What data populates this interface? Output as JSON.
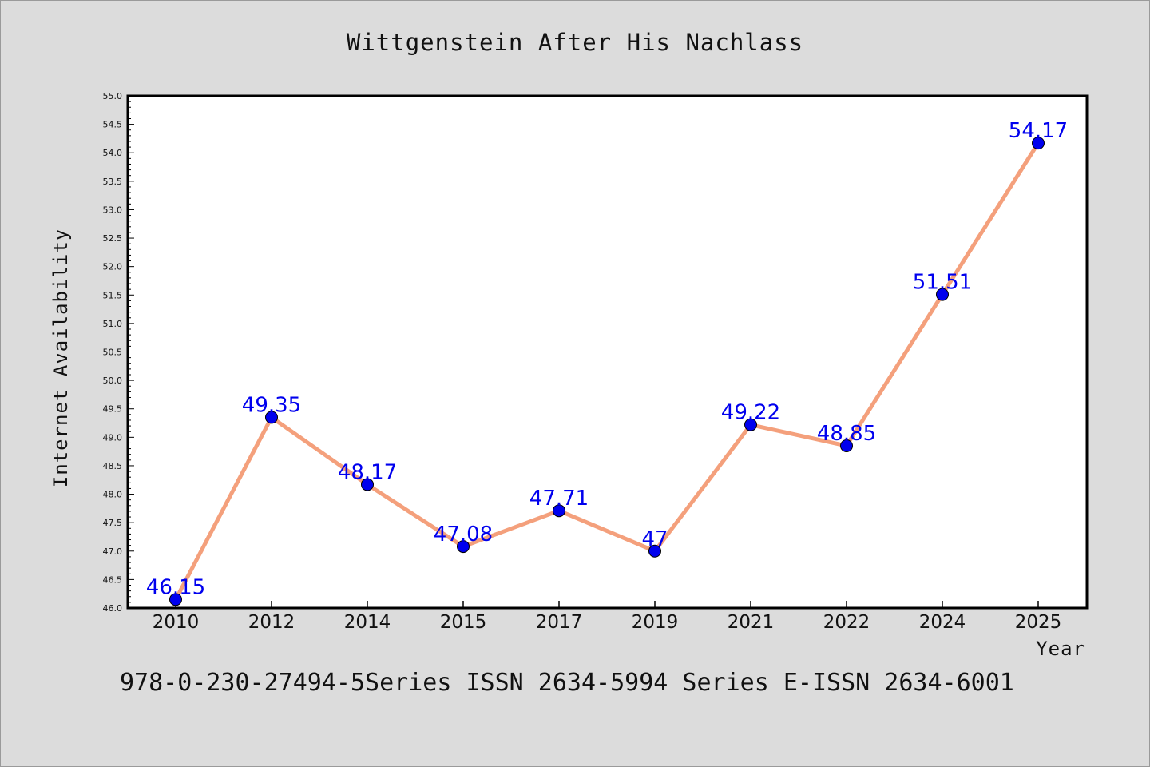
{
  "chart_data": {
    "type": "line",
    "title": "Wittgenstein After His Nachlass",
    "xlabel": "Year",
    "ylabel": "Internet Availability",
    "categories": [
      "2010",
      "2012",
      "2014",
      "2015",
      "2017",
      "2019",
      "2021",
      "2022",
      "2024",
      "2025"
    ],
    "series": [
      {
        "values": [
          46.15,
          49.35,
          48.17,
          47.08,
          47.71,
          47,
          49.22,
          48.85,
          51.51,
          54.17
        ],
        "data_labels": [
          "46.15",
          "49.35",
          "48.17",
          "47.08",
          "47.71",
          "47",
          "49.22",
          "48.85",
          "51.51",
          "54.17"
        ],
        "line_color": "#f4a07c",
        "marker_color": "#0000ee"
      }
    ],
    "ylim": [
      46.0,
      55.0
    ],
    "yticks": [
      "46.0",
      "46.5",
      "47.0",
      "47.5",
      "48.0",
      "48.5",
      "49.0",
      "49.5",
      "50.0",
      "50.5",
      "51.0",
      "51.5",
      "52.0",
      "52.5",
      "53.0",
      "53.5",
      "54.0",
      "54.5",
      "55.0"
    ],
    "grid": false,
    "legend": "none"
  },
  "footer_text": "978-0-230-27494-5Series ISSN 2634-5994 Series E-ISSN 2634-6001"
}
